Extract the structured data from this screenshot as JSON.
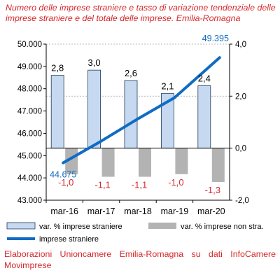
{
  "title": "Numero delle imprese straniere e tasso di variazione tendenziale delle imprese straniere e del totale delle imprese. Emilia-Romagna",
  "footer": "Elaborazioni Unioncamere Emilia-Romagna su dati InfoCamere Movimprese",
  "colors": {
    "title": "#d6282b",
    "bar_stranieri": "#c6d9f1",
    "bar_stranieri_edge": "#1f3c5a",
    "bar_totale": "#b3b3b3",
    "line": "#0f6cc4",
    "line_label": "#0f6cc4",
    "negative_label": "#d6282b",
    "axis": "#000000",
    "grid": "#a6a6a6"
  },
  "chart_data": {
    "type": "bar",
    "categories": [
      "mar-16",
      "mar-17",
      "mar-18",
      "mar-19",
      "mar-20"
    ],
    "left_axis": {
      "min": 43000,
      "max": 50000,
      "ticks": [
        "43.000",
        "44.000",
        "45.000",
        "46.000",
        "47.000",
        "48.000",
        "49.000",
        "50.000"
      ]
    },
    "right_axis": {
      "min": -2.0,
      "max": 4.0,
      "ticks": [
        "-2,0",
        "0,0",
        "2,0",
        "4,0"
      ]
    },
    "series": [
      {
        "name": "var. % imprese straniere",
        "axis": "right",
        "kind": "bar",
        "values": [
          2.8,
          3.0,
          2.6,
          2.1,
          2.4
        ],
        "labels": [
          "2,8",
          "3,0",
          "2,6",
          "2,1",
          "2,4"
        ]
      },
      {
        "name": "var. % imprese non stra.",
        "axis": "right",
        "kind": "bar",
        "values": [
          -1.0,
          -1.1,
          -1.1,
          -1.0,
          -1.3
        ],
        "labels": [
          "-1,0",
          "-1,1",
          "-1,1",
          "-1,0",
          "-1,3"
        ]
      },
      {
        "name": "imprese straniere",
        "axis": "left",
        "kind": "line",
        "values": [
          44675,
          45650,
          46650,
          47600,
          49395
        ],
        "endpoint_labels": [
          "44.675",
          "49.395"
        ]
      }
    ],
    "legend_position": "bottom",
    "gridlines": "dashed horizontal at right-axis ticks"
  }
}
